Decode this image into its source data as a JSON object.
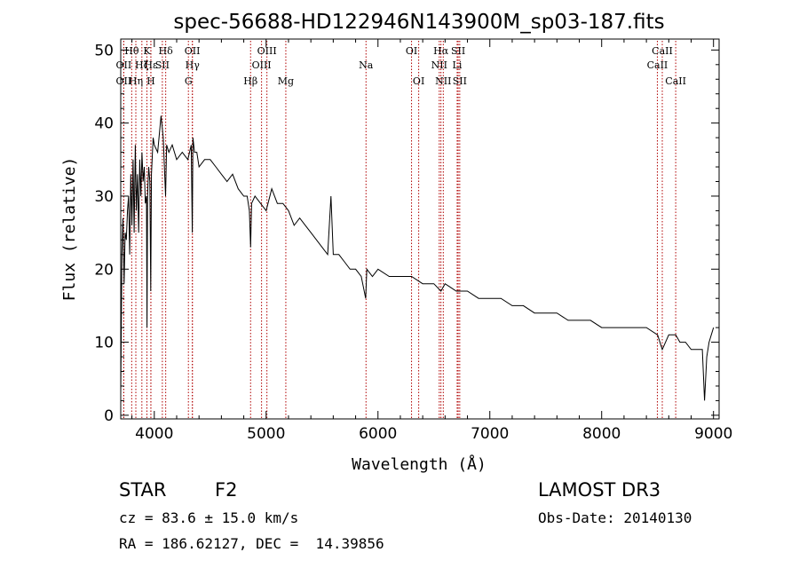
{
  "chart_data": {
    "type": "line",
    "title": "spec-56688-HD122946N143900M_sp03-187.fits",
    "xlabel": "Wavelength (Å)",
    "ylabel": "Flux (relative)",
    "xlim": [
      3700,
      9050
    ],
    "ylim": [
      -0.5,
      51.5
    ],
    "xticks": [
      4000,
      5000,
      6000,
      7000,
      8000,
      9000
    ],
    "yticks": [
      0,
      10,
      20,
      30,
      40,
      50
    ],
    "series": [
      {
        "name": "flux",
        "x": [
          3700,
          3710,
          3720,
          3730,
          3740,
          3750,
          3760,
          3770,
          3780,
          3790,
          3800,
          3810,
          3820,
          3830,
          3840,
          3850,
          3860,
          3870,
          3880,
          3890,
          3900,
          3910,
          3920,
          3930,
          3935,
          3940,
          3950,
          3960,
          3968,
          3975,
          3990,
          4000,
          4030,
          4060,
          4080,
          4101,
          4110,
          4130,
          4160,
          4200,
          4250,
          4300,
          4330,
          4340,
          4345,
          4360,
          4380,
          4400,
          4450,
          4500,
          4550,
          4600,
          4650,
          4700,
          4750,
          4800,
          4830,
          4850,
          4861,
          4870,
          4900,
          4950,
          5000,
          5050,
          5100,
          5150,
          5200,
          5250,
          5300,
          5350,
          5400,
          5450,
          5500,
          5550,
          5580,
          5600,
          5650,
          5700,
          5750,
          5800,
          5850,
          5890,
          5900,
          5950,
          6000,
          6100,
          6200,
          6300,
          6400,
          6500,
          6563,
          6600,
          6700,
          6800,
          6900,
          7000,
          7100,
          7200,
          7300,
          7400,
          7500,
          7600,
          7700,
          7800,
          7900,
          8000,
          8100,
          8200,
          8300,
          8400,
          8500,
          8542,
          8600,
          8662,
          8700,
          8750,
          8800,
          8850,
          8900,
          8920,
          8940,
          8960,
          8980,
          9000
        ],
        "y": [
          3,
          22,
          27,
          18,
          25,
          24,
          28,
          30,
          22,
          33,
          26,
          35,
          25,
          37,
          28,
          33,
          25,
          35,
          30,
          36,
          32,
          34,
          29,
          30,
          12,
          30,
          34,
          32,
          17,
          33,
          38,
          37,
          36,
          41,
          38,
          30,
          37,
          36,
          37,
          35,
          36,
          35,
          37,
          25,
          38,
          36,
          36,
          34,
          35,
          35,
          34,
          33,
          32,
          33,
          31,
          30,
          30,
          28,
          23,
          29,
          30,
          29,
          28,
          31,
          29,
          29,
          28,
          26,
          27,
          26,
          25,
          24,
          23,
          22,
          30,
          22,
          22,
          21,
          20,
          20,
          19,
          16,
          20,
          19,
          20,
          19,
          19,
          19,
          18,
          18,
          17,
          18,
          17,
          17,
          16,
          16,
          16,
          15,
          15,
          14,
          14,
          14,
          13,
          13,
          13,
          12,
          12,
          12,
          12,
          12,
          11,
          9,
          11,
          11,
          10,
          10,
          9,
          9,
          9,
          2,
          8,
          10,
          11,
          12
        ]
      }
    ],
    "lines": [
      {
        "label": "Hθ",
        "wl": 3798,
        "row": 1
      },
      {
        "label": "OII",
        "wl": 3727,
        "row": 2
      },
      {
        "label": "OII",
        "wl": 3727,
        "row": 3
      },
      {
        "label": "Hε",
        "wl": 3970,
        "row": 2
      },
      {
        "label": "Hη",
        "wl": 3835,
        "row": 3
      },
      {
        "label": "K",
        "wl": 3934,
        "row": 1
      },
      {
        "label": "Hζ",
        "wl": 3889,
        "row": 2
      },
      {
        "label": "H",
        "wl": 3969,
        "row": 3
      },
      {
        "label": "Hδ",
        "wl": 4102,
        "row": 1
      },
      {
        "label": "SII",
        "wl": 4072,
        "row": 2
      },
      {
        "label": "OII",
        "wl": 4340,
        "row": 1
      },
      {
        "label": "Hγ",
        "wl": 4341,
        "row": 2
      },
      {
        "label": "G",
        "wl": 4305,
        "row": 3
      },
      {
        "label": "OIII",
        "wl": 5007,
        "row": 1
      },
      {
        "label": "OIII",
        "wl": 4959,
        "row": 2
      },
      {
        "label": "Hβ",
        "wl": 4861,
        "row": 3
      },
      {
        "label": "Mg",
        "wl": 5176,
        "row": 3
      },
      {
        "label": "Na",
        "wl": 5893,
        "row": 2
      },
      {
        "label": "OI",
        "wl": 6300,
        "row": 1
      },
      {
        "label": "OI",
        "wl": 6364,
        "row": 3
      },
      {
        "label": "Hα",
        "wl": 6563,
        "row": 1
      },
      {
        "label": "NII",
        "wl": 6548,
        "row": 2
      },
      {
        "label": "NII",
        "wl": 6584,
        "row": 3
      },
      {
        "label": "SII",
        "wl": 6717,
        "row": 1
      },
      {
        "label": "Li",
        "wl": 6708,
        "row": 2
      },
      {
        "label": "SII",
        "wl": 6731,
        "row": 3
      },
      {
        "label": "CaII",
        "wl": 8542,
        "row": 1
      },
      {
        "label": "CaII",
        "wl": 8498,
        "row": 2
      },
      {
        "label": "CaII",
        "wl": 8662,
        "row": 3
      }
    ]
  },
  "info": {
    "class": "STAR",
    "subclass": "F2",
    "survey": "LAMOST DR3",
    "cz": "cz = 83.6 ± 15.0 km/s",
    "obs_date": "Obs-Date: 20140130",
    "radec": "RA = 186.62127, DEC =  14.39856"
  },
  "colors": {
    "line_marker": "#b00000",
    "spectrum": "#000000"
  }
}
